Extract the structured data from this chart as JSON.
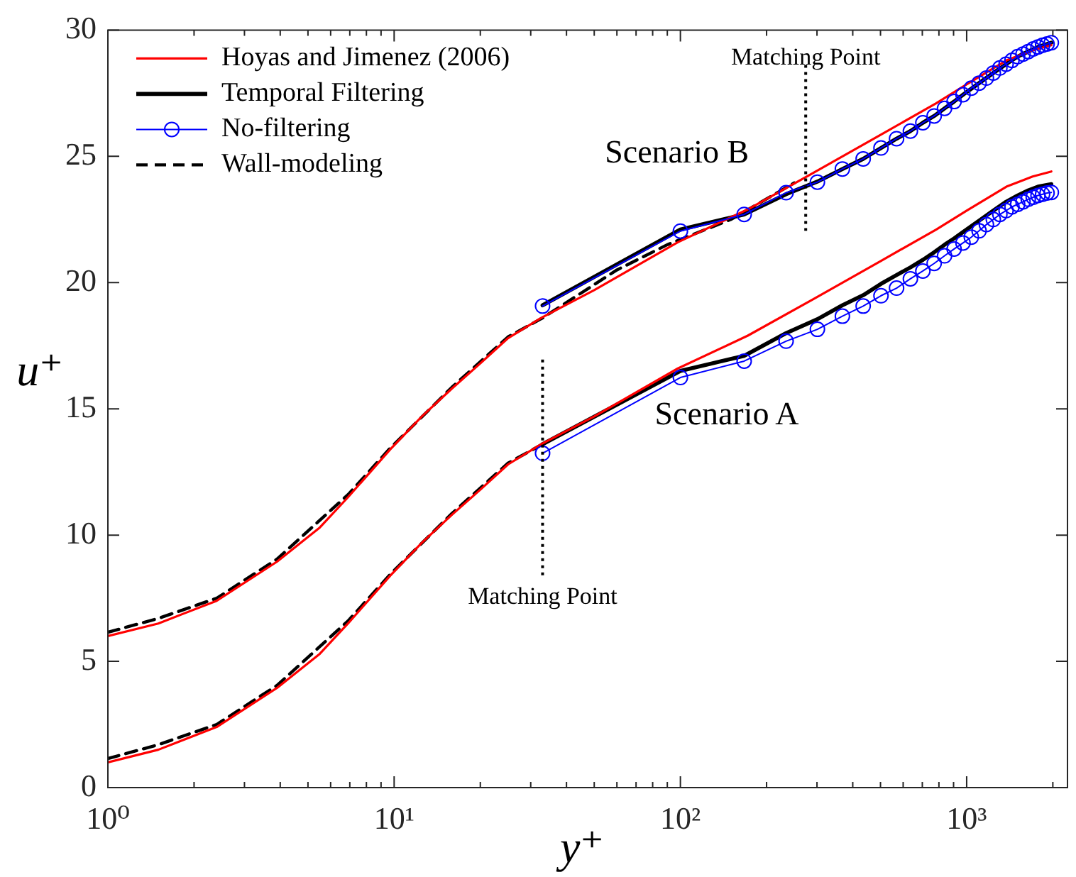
{
  "chart_data": {
    "type": "line",
    "xlabel": "y⁺",
    "ylabel": "u⁺",
    "log": "x",
    "legend": "top left",
    "xlim": [
      1,
      2250
    ],
    "ylim": [
      0,
      30
    ],
    "xticks": [
      {
        "value": 1,
        "label": "10⁰"
      },
      {
        "value": 2,
        "label": null
      },
      {
        "value": 3,
        "label": null
      },
      {
        "value": 4,
        "label": null
      },
      {
        "value": 5,
        "label": null
      },
      {
        "value": 6,
        "label": null
      },
      {
        "value": 7,
        "label": null
      },
      {
        "value": 8,
        "label": null
      },
      {
        "value": 9,
        "label": null
      },
      {
        "value": 10,
        "label": "10¹"
      },
      {
        "value": 20,
        "label": null
      },
      {
        "value": 30,
        "label": null
      },
      {
        "value": 40,
        "label": null
      },
      {
        "value": 50,
        "label": null
      },
      {
        "value": 60,
        "label": null
      },
      {
        "value": 70,
        "label": null
      },
      {
        "value": 80,
        "label": null
      },
      {
        "value": 90,
        "label": null
      },
      {
        "value": 100,
        "label": "10²"
      },
      {
        "value": 200,
        "label": null
      },
      {
        "value": 300,
        "label": null
      },
      {
        "value": 400,
        "label": null
      },
      {
        "value": 500,
        "label": null
      },
      {
        "value": 600,
        "label": null
      },
      {
        "value": 700,
        "label": null
      },
      {
        "value": 800,
        "label": null
      },
      {
        "value": 900,
        "label": null
      },
      {
        "value": 1000,
        "label": "10³"
      },
      {
        "value": 2000,
        "label": null
      }
    ],
    "yticks": [
      0,
      5,
      10,
      15,
      20,
      25,
      30
    ],
    "series": [
      {
        "name": "Hoyas and Jimenez (2006)",
        "color": "#ff0000",
        "x": [
          1,
          1.5,
          2.4,
          3.9,
          5.5,
          6.9,
          9.7,
          12.5,
          15.9,
          20,
          25,
          32.6,
          50,
          98,
          172,
          292,
          500,
          782,
          1000,
          1377,
          1700,
          1976
        ],
        "values": [
          1.0,
          1.5,
          2.4,
          3.95,
          5.3,
          6.5,
          8.4,
          9.7,
          10.8,
          11.8,
          12.8,
          13.6,
          14.7,
          16.6,
          17.9,
          19.35,
          20.85,
          22.1,
          22.85,
          23.8,
          24.2,
          24.4
        ]
      },
      {
        "color": "#ff0000",
        "x": [
          1,
          1.5,
          2.4,
          3.9,
          5.5,
          6.9,
          9.7,
          12.5,
          15.9,
          20,
          25,
          32.6,
          50,
          98,
          172,
          292,
          500,
          782,
          1000,
          1377,
          1700,
          1976
        ],
        "values": [
          6.0,
          6.5,
          7.4,
          8.95,
          10.3,
          11.5,
          13.4,
          14.7,
          15.8,
          16.8,
          17.8,
          18.6,
          19.7,
          21.6,
          22.9,
          24.35,
          25.85,
          27.1,
          27.85,
          28.8,
          29.2,
          29.4
        ]
      },
      {
        "name": "Temporal Filtering",
        "color": "#000000",
        "x": [
          33,
          100,
          167,
          234,
          301,
          368,
          435,
          502,
          569,
          636,
          703,
          770,
          837,
          904,
          971,
          1105,
          1239,
          1373,
          1507,
          1641,
          1775,
          1976
        ],
        "values": [
          13.6,
          16.5,
          17.1,
          18.0,
          18.55,
          19.1,
          19.5,
          19.95,
          20.3,
          20.6,
          20.9,
          21.2,
          21.5,
          21.75,
          22.0,
          22.45,
          22.85,
          23.2,
          23.45,
          23.65,
          23.8,
          23.9
        ]
      },
      {
        "color": "#000000",
        "x": [
          33,
          100,
          167,
          234,
          301,
          368,
          435,
          502,
          569,
          636,
          703,
          770,
          837,
          904,
          971,
          1105,
          1239,
          1373,
          1507,
          1641,
          1775,
          1976
        ],
        "values": [
          19.1,
          22.1,
          22.7,
          23.5,
          24.0,
          24.5,
          24.9,
          25.33,
          25.7,
          26.0,
          26.33,
          26.6,
          26.9,
          27.17,
          27.44,
          27.9,
          28.3,
          28.65,
          28.95,
          29.15,
          29.33,
          29.5
        ]
      },
      {
        "name": "No-filtering",
        "color": "#0000ff",
        "marker": "circle",
        "x": [
          33,
          100,
          167,
          234,
          301,
          368,
          435,
          502,
          569,
          636,
          703,
          770,
          837,
          904,
          971,
          1038,
          1105,
          1172,
          1239,
          1306,
          1373,
          1440,
          1507,
          1574,
          1641,
          1708,
          1775,
          1842,
          1909,
          1976
        ],
        "values": [
          13.24,
          16.24,
          16.89,
          17.68,
          18.15,
          18.67,
          19.07,
          19.48,
          19.78,
          20.15,
          20.46,
          20.76,
          21.06,
          21.33,
          21.57,
          21.8,
          22.05,
          22.3,
          22.5,
          22.7,
          22.85,
          23.0,
          23.1,
          23.2,
          23.3,
          23.38,
          23.45,
          23.5,
          23.55,
          23.57
        ]
      },
      {
        "color": "#0000ff",
        "marker": "circle",
        "x": [
          33,
          100,
          167,
          234,
          301,
          368,
          435,
          502,
          569,
          636,
          703,
          770,
          837,
          904,
          971,
          1038,
          1105,
          1172,
          1239,
          1306,
          1373,
          1440,
          1507,
          1574,
          1641,
          1708,
          1775,
          1842,
          1909,
          1976
        ],
        "values": [
          19.07,
          22.04,
          22.7,
          23.56,
          23.98,
          24.5,
          24.9,
          25.33,
          25.7,
          26.0,
          26.33,
          26.6,
          26.9,
          27.17,
          27.44,
          27.7,
          27.9,
          28.1,
          28.3,
          28.5,
          28.65,
          28.8,
          28.95,
          29.05,
          29.15,
          29.25,
          29.33,
          29.4,
          29.45,
          29.5
        ]
      },
      {
        "name": "Wall-modeling",
        "color": "#000000",
        "line_style": "dashed",
        "x": [
          1,
          1.5,
          2.4,
          3.9,
          6.9,
          9.7,
          15.9,
          25,
          33
        ],
        "values": [
          1.15,
          1.7,
          2.5,
          4.05,
          6.6,
          8.45,
          10.85,
          12.85,
          13.6
        ]
      },
      {
        "color": "#000000",
        "line_style": "dashed",
        "x": [
          1,
          1.5,
          2.4,
          3.9,
          6.9,
          9.7,
          15.9,
          25,
          33,
          60,
          90,
          150,
          250
        ],
        "values": [
          6.15,
          6.7,
          7.5,
          9.05,
          11.6,
          13.45,
          15.85,
          17.85,
          18.6,
          20.5,
          21.5,
          22.5,
          23.95
        ]
      }
    ],
    "ref_lines": [
      {
        "axis": "x",
        "value": 33,
        "label": "Matching Point",
        "line_style": "dotted",
        "color": "#000000"
      },
      {
        "axis": "x",
        "value": 274,
        "label": "Matching Point",
        "line_style": "dotted",
        "color": "#000000"
      }
    ],
    "annotations": [
      "Scenario B",
      "Scenario A"
    ]
  }
}
